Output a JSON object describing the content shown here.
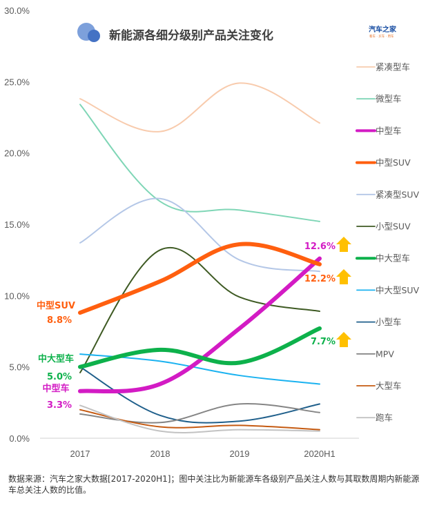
{
  "chart_data": {
    "type": "line",
    "title": "新能源各细分级别产品关注变化",
    "xlabel": "",
    "ylabel": "",
    "categories": [
      "2017",
      "2018",
      "2019",
      "2020H1"
    ],
    "ylim": [
      0,
      30
    ],
    "yticks": [
      "0.0%",
      "5.0%",
      "10.0%",
      "15.0%",
      "20.0%",
      "25.0%",
      "30.0%"
    ],
    "ytick_values": [
      0,
      5,
      10,
      15,
      20,
      25,
      30
    ],
    "grid": false,
    "legend_position": "right",
    "smooth": true,
    "series": [
      {
        "name": "紧凑型车",
        "color": "#f8cbad",
        "emphasis": false,
        "values": [
          23.8,
          21.5,
          24.9,
          22.1
        ]
      },
      {
        "name": "微型车",
        "color": "#7fd6b6",
        "emphasis": false,
        "values": [
          23.4,
          16.6,
          16.0,
          15.2
        ]
      },
      {
        "name": "中型车",
        "color": "#d31bc4",
        "emphasis": true,
        "values": [
          3.3,
          3.8,
          7.7,
          12.6
        ]
      },
      {
        "name": "中型SUV",
        "color": "#ff5f0f",
        "emphasis": true,
        "values": [
          8.8,
          11.0,
          13.6,
          12.2
        ]
      },
      {
        "name": "紧凑型SUV",
        "color": "#b4c7e7",
        "emphasis": false,
        "values": [
          13.7,
          16.8,
          12.5,
          11.7
        ]
      },
      {
        "name": "小型SUV",
        "color": "#3e5a23",
        "emphasis": false,
        "values": [
          4.6,
          13.2,
          9.9,
          8.9
        ]
      },
      {
        "name": "中大型车",
        "color": "#0db14b",
        "emphasis": true,
        "values": [
          5.0,
          6.2,
          5.3,
          7.7
        ]
      },
      {
        "name": "中大型SUV",
        "color": "#1ab2f0",
        "emphasis": false,
        "values": [
          5.9,
          5.4,
          4.4,
          3.8
        ]
      },
      {
        "name": "小型车",
        "color": "#1f5f8b",
        "emphasis": false,
        "values": [
          5.0,
          1.6,
          1.2,
          2.4
        ]
      },
      {
        "name": "MPV",
        "color": "#858585",
        "emphasis": false,
        "values": [
          1.7,
          1.1,
          2.4,
          1.8
        ]
      },
      {
        "name": "大型车",
        "color": "#c55a11",
        "emphasis": false,
        "values": [
          2.0,
          0.8,
          0.9,
          0.6
        ]
      },
      {
        "name": "跑车",
        "color": "#c2c2c2",
        "emphasis": false,
        "values": [
          2.3,
          0.5,
          0.6,
          0.5
        ]
      }
    ],
    "annotations": {
      "start": [
        {
          "series": "中型SUV",
          "label": "中型SUV",
          "value_label": "8.8%",
          "color": "#ff5f0f"
        },
        {
          "series": "中大型车",
          "label": "中大型车",
          "value_label": "5.0%",
          "color": "#0db14b"
        },
        {
          "series": "中型车",
          "label": "中型车",
          "value_label": "3.3%",
          "color": "#d31bc4"
        }
      ],
      "end": [
        {
          "series": "中型车",
          "value_label": "12.6%",
          "color": "#d31bc4",
          "arrow": "up"
        },
        {
          "series": "中型SUV",
          "value_label": "12.2%",
          "color": "#ff5f0f",
          "arrow": "up"
        },
        {
          "series": "中大型车",
          "value_label": "7.7%",
          "color": "#0db14b",
          "arrow": "up"
        }
      ],
      "arrow_color": "#ffc000"
    }
  },
  "logo": {
    "main": "汽车之家",
    "sub": "看车 · 买车 · 用车"
  },
  "title_icon_colors": [
    "#7da0db",
    "#4472c4"
  ],
  "footnote": "数据来源：汽车之家大数据[2017-2020H1]；图中关注比为新能源车各级别产品关注人数与其取数周期内新能源车总关注人数的比值。"
}
